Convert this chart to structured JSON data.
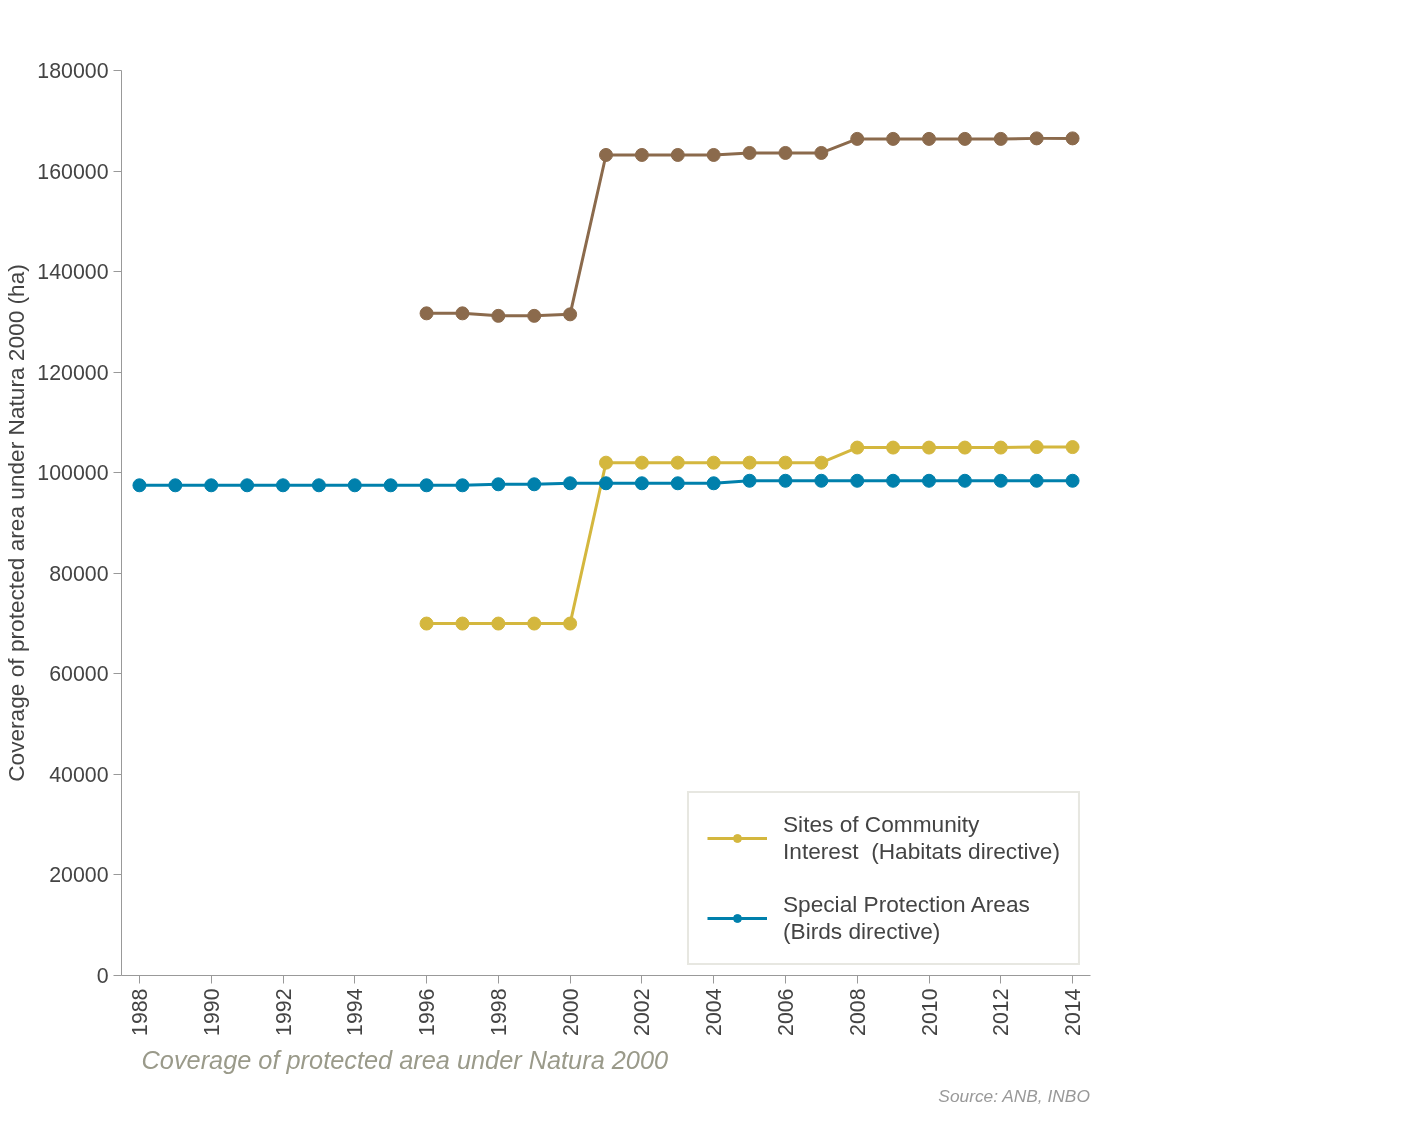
{
  "chart_data": {
    "type": "line",
    "ylabel": "Coverage of protected area under Natura 2000 (ha)",
    "x": [
      1988,
      1989,
      1990,
      1991,
      1992,
      1993,
      1994,
      1995,
      1996,
      1997,
      1998,
      1999,
      2000,
      2001,
      2002,
      2003,
      2004,
      2005,
      2006,
      2007,
      2008,
      2009,
      2010,
      2011,
      2012,
      2013,
      2014
    ],
    "series": [
      {
        "color": "#8b6a4c",
        "values": [
          null,
          null,
          null,
          null,
          null,
          null,
          null,
          null,
          131700,
          131700,
          131200,
          131200,
          131500,
          163200,
          163200,
          163200,
          163200,
          163600,
          163600,
          163600,
          166400,
          166400,
          166400,
          166400,
          166400,
          166500,
          166500
        ]
      },
      {
        "name": "Sites of Community\nInterest  (Habitats directive)",
        "color": "#d4b73e",
        "values": [
          null,
          null,
          null,
          null,
          null,
          null,
          null,
          null,
          70000,
          70000,
          70000,
          70000,
          70000,
          102000,
          102000,
          102000,
          102000,
          102000,
          102000,
          102000,
          105000,
          105000,
          105000,
          105000,
          105000,
          105100,
          105100
        ]
      },
      {
        "name": "Special Protection Areas\n(Birds directive)",
        "color": "#0080ac",
        "values": [
          97500,
          97500,
          97500,
          97500,
          97500,
          97500,
          97500,
          97500,
          97500,
          97500,
          97700,
          97700,
          97900,
          97900,
          97900,
          97900,
          97900,
          98400,
          98400,
          98400,
          98400,
          98400,
          98400,
          98400,
          98400,
          98400,
          98400
        ]
      }
    ],
    "xlim": [
      1987.5,
      2014.5
    ],
    "xticks": [
      1988,
      1990,
      1992,
      1994,
      1996,
      1998,
      2000,
      2002,
      2004,
      2006,
      2008,
      2010,
      2012,
      2014
    ],
    "ylim": [
      0,
      180000
    ],
    "yticks": [
      0,
      20000,
      40000,
      60000,
      80000,
      100000,
      120000,
      140000,
      160000,
      180000
    ],
    "marker": "circle",
    "line_style": "solid",
    "grid": false,
    "legend": "bottom right",
    "annotations": [
      "Coverage of protected area under Natura 2000",
      "Source: ANB, INBO"
    ]
  }
}
